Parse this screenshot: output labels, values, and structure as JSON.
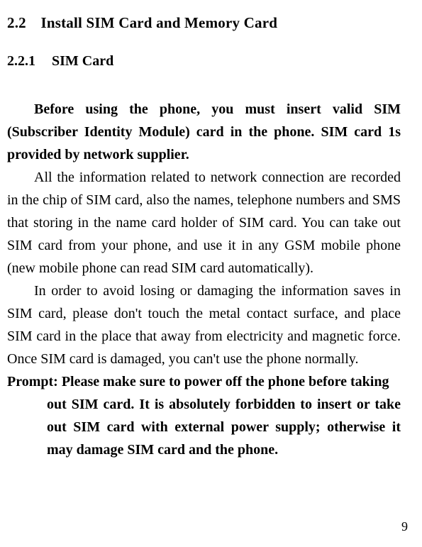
{
  "section": {
    "number": "2.2",
    "title": "Install SIM Card and Memory Card"
  },
  "subsection": {
    "number": "2.2.1",
    "title": "SIM Card"
  },
  "paragraphs": {
    "intro": "Before using the phone, you must insert valid SIM (Subscriber Identity Module) card in the phone. SIM card 1s provided by network supplier.",
    "info": "All the information related to network connection are recorded in the chip of SIM card, also the names, telephone numbers and SMS that storing in the name card holder of SIM card. You can take out SIM card from your phone, and use it in any GSM mobile phone (new mobile phone can read SIM card automatically).",
    "care": "In order to avoid losing or damaging the information saves in SIM card, please don't touch the metal contact surface, and place SIM card in the place that away from electricity and magnetic force. Once SIM card is damaged, you can't use the phone normally.",
    "prompt_lead": "Prompt: Please make sure to power off the phone before taking",
    "prompt_body": "out SIM card. It is absolutely forbidden to insert or take out SIM card with external power supply; otherwise it may damage SIM card and the phone."
  },
  "pageNumber": "9",
  "style": {
    "background": "#ffffff",
    "textColor": "#000000",
    "fontFamily": "Times New Roman",
    "bodyFontSize": 20,
    "lineHeight": 32,
    "headingFontSize": 21,
    "subheadingFontSize": 20
  }
}
